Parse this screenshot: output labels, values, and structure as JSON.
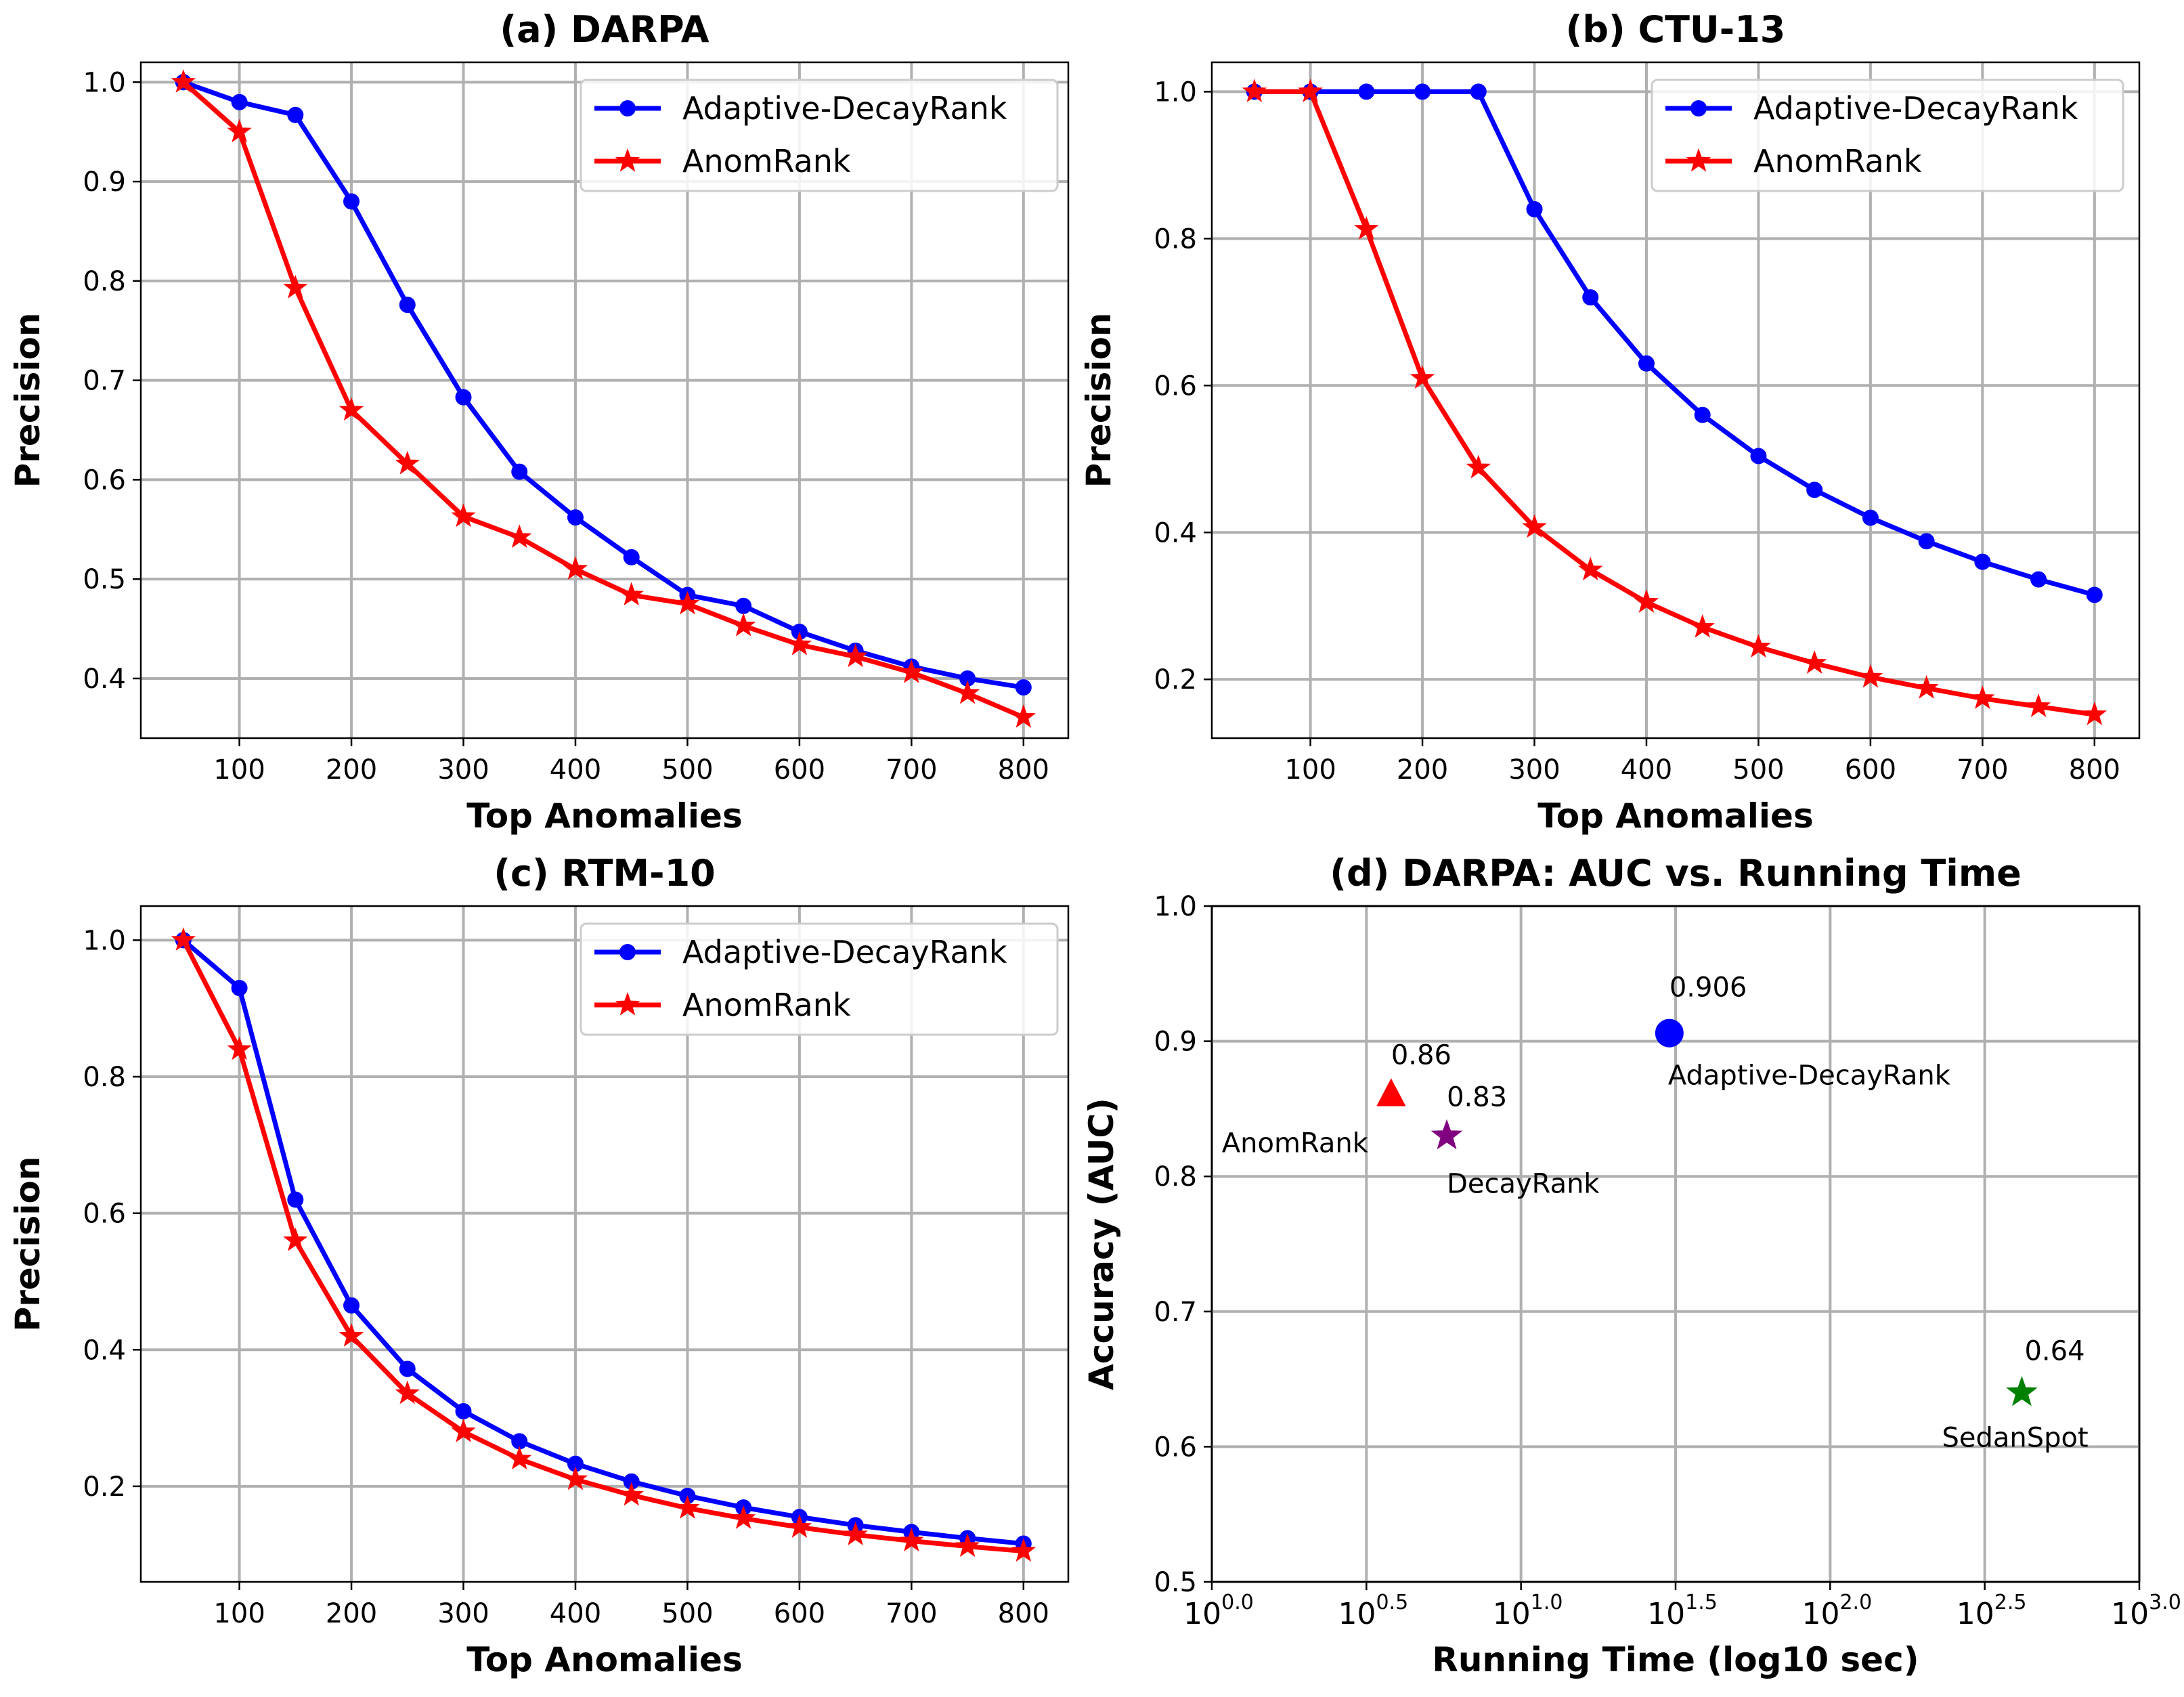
{
  "chart_data": [
    {
      "type": "line",
      "title": "(a) DARPA",
      "xlabel": "Top Anomalies",
      "ylabel": "Precision",
      "x": [
        50,
        100,
        150,
        200,
        250,
        300,
        350,
        400,
        450,
        500,
        550,
        600,
        650,
        700,
        750,
        800
      ],
      "xlim": [
        12,
        840
      ],
      "ylim": [
        0.34,
        1.02
      ],
      "xticks": [
        100,
        200,
        300,
        400,
        500,
        600,
        700,
        800
      ],
      "xtick_labels": [
        "100",
        "200",
        "300",
        "400",
        "500",
        "600",
        "700",
        "800"
      ],
      "yticks": [
        0.4,
        0.5,
        0.6,
        0.7,
        0.8,
        0.9,
        1.0
      ],
      "ytick_labels": [
        "0.4",
        "0.5",
        "0.6",
        "0.7",
        "0.8",
        "0.9",
        "1.0"
      ],
      "grid": true,
      "legend": "top-right",
      "series": [
        {
          "name": "Adaptive-DecayRank",
          "color": "#0000ff",
          "marker": "circle",
          "values": [
            1.0,
            0.98,
            0.967,
            0.88,
            0.776,
            0.683,
            0.608,
            0.562,
            0.522,
            0.484,
            0.473,
            0.447,
            0.428,
            0.412,
            0.4,
            0.391
          ]
        },
        {
          "name": "AnomRank",
          "color": "#ff0000",
          "marker": "star",
          "values": [
            1.0,
            0.95,
            0.793,
            0.67,
            0.616,
            0.563,
            0.542,
            0.51,
            0.484,
            0.475,
            0.453,
            0.434,
            0.422,
            0.406,
            0.385,
            0.361
          ]
        }
      ]
    },
    {
      "type": "line",
      "title": "(b) CTU-13",
      "xlabel": "Top Anomalies",
      "ylabel": "Precision",
      "x": [
        50,
        100,
        150,
        200,
        250,
        300,
        350,
        400,
        450,
        500,
        550,
        600,
        650,
        700,
        750,
        800
      ],
      "xlim": [
        12,
        840
      ],
      "ylim": [
        0.12,
        1.04
      ],
      "xticks": [
        100,
        200,
        300,
        400,
        500,
        600,
        700,
        800
      ],
      "xtick_labels": [
        "100",
        "200",
        "300",
        "400",
        "500",
        "600",
        "700",
        "800"
      ],
      "yticks": [
        0.2,
        0.4,
        0.6,
        0.8,
        1.0
      ],
      "ytick_labels": [
        "0.2",
        "0.4",
        "0.6",
        "0.8",
        "1.0"
      ],
      "grid": true,
      "legend": "top-right",
      "series": [
        {
          "name": "Adaptive-DecayRank",
          "color": "#0000ff",
          "marker": "circle",
          "values": [
            1.0,
            1.0,
            1.0,
            1.0,
            1.0,
            0.84,
            0.72,
            0.63,
            0.56,
            0.504,
            0.458,
            0.42,
            0.388,
            0.36,
            0.336,
            0.315
          ]
        },
        {
          "name": "AnomRank",
          "color": "#ff0000",
          "marker": "star",
          "values": [
            1.0,
            1.0,
            0.813,
            0.61,
            0.488,
            0.407,
            0.349,
            0.305,
            0.271,
            0.244,
            0.222,
            0.203,
            0.188,
            0.174,
            0.163,
            0.152
          ]
        }
      ]
    },
    {
      "type": "line",
      "title": "(c) RTM-10",
      "xlabel": "Top Anomalies",
      "ylabel": "Precision",
      "x": [
        50,
        100,
        150,
        200,
        250,
        300,
        350,
        400,
        450,
        500,
        550,
        600,
        650,
        700,
        750,
        800
      ],
      "xlim": [
        12,
        840
      ],
      "ylim": [
        0.06,
        1.05
      ],
      "xticks": [
        100,
        200,
        300,
        400,
        500,
        600,
        700,
        800
      ],
      "xtick_labels": [
        "100",
        "200",
        "300",
        "400",
        "500",
        "600",
        "700",
        "800"
      ],
      "yticks": [
        0.2,
        0.4,
        0.6,
        0.8,
        1.0
      ],
      "ytick_labels": [
        "0.2",
        "0.4",
        "0.6",
        "0.8",
        "1.0"
      ],
      "grid": true,
      "legend": "top-right",
      "series": [
        {
          "name": "Adaptive-DecayRank",
          "color": "#0000ff",
          "marker": "circle",
          "values": [
            1.0,
            0.93,
            0.62,
            0.465,
            0.372,
            0.31,
            0.266,
            0.233,
            0.207,
            0.186,
            0.169,
            0.155,
            0.143,
            0.133,
            0.124,
            0.116
          ]
        },
        {
          "name": "AnomRank",
          "color": "#ff0000",
          "marker": "star",
          "values": [
            1.0,
            0.84,
            0.56,
            0.42,
            0.336,
            0.28,
            0.24,
            0.21,
            0.187,
            0.168,
            0.153,
            0.14,
            0.129,
            0.12,
            0.112,
            0.105
          ]
        }
      ]
    },
    {
      "type": "scatter",
      "title": "(d) DARPA: AUC vs. Running Time",
      "xlabel": "Running Time (log10 sec)",
      "ylabel": "Accuracy (AUC)",
      "xscale": "log10",
      "xlim": [
        0.0,
        3.0
      ],
      "ylim": [
        0.5,
        1.0
      ],
      "xticks": [
        0.0,
        0.5,
        1.0,
        1.5,
        2.0,
        2.5,
        3.0
      ],
      "xtick_labels": [
        {
          "base": "10",
          "exp": "0.0"
        },
        {
          "base": "10",
          "exp": "0.5"
        },
        {
          "base": "10",
          "exp": "1.0"
        },
        {
          "base": "10",
          "exp": "1.5"
        },
        {
          "base": "10",
          "exp": "2.0"
        },
        {
          "base": "10",
          "exp": "2.5"
        },
        {
          "base": "10",
          "exp": "3.0"
        }
      ],
      "yticks": [
        0.5,
        0.6,
        0.7,
        0.8,
        0.9,
        1.0
      ],
      "ytick_labels": [
        "0.5",
        "0.6",
        "0.7",
        "0.8",
        "0.9",
        "1.0"
      ],
      "grid": true,
      "points": [
        {
          "name": "Adaptive-DecayRank",
          "x": 1.48,
          "y": 0.906,
          "value_label": "0.906",
          "color": "#0000ff",
          "marker": "circle"
        },
        {
          "name": "AnomRank",
          "x": 0.58,
          "y": 0.86,
          "value_label": "0.86",
          "color": "#ff0000",
          "marker": "triangle"
        },
        {
          "name": "DecayRank",
          "x": 0.76,
          "y": 0.83,
          "value_label": "0.83",
          "color": "#800080",
          "marker": "star"
        },
        {
          "name": "SedanSpot",
          "x": 2.62,
          "y": 0.64,
          "value_label": "0.64",
          "color": "#008000",
          "marker": "star"
        }
      ]
    }
  ]
}
